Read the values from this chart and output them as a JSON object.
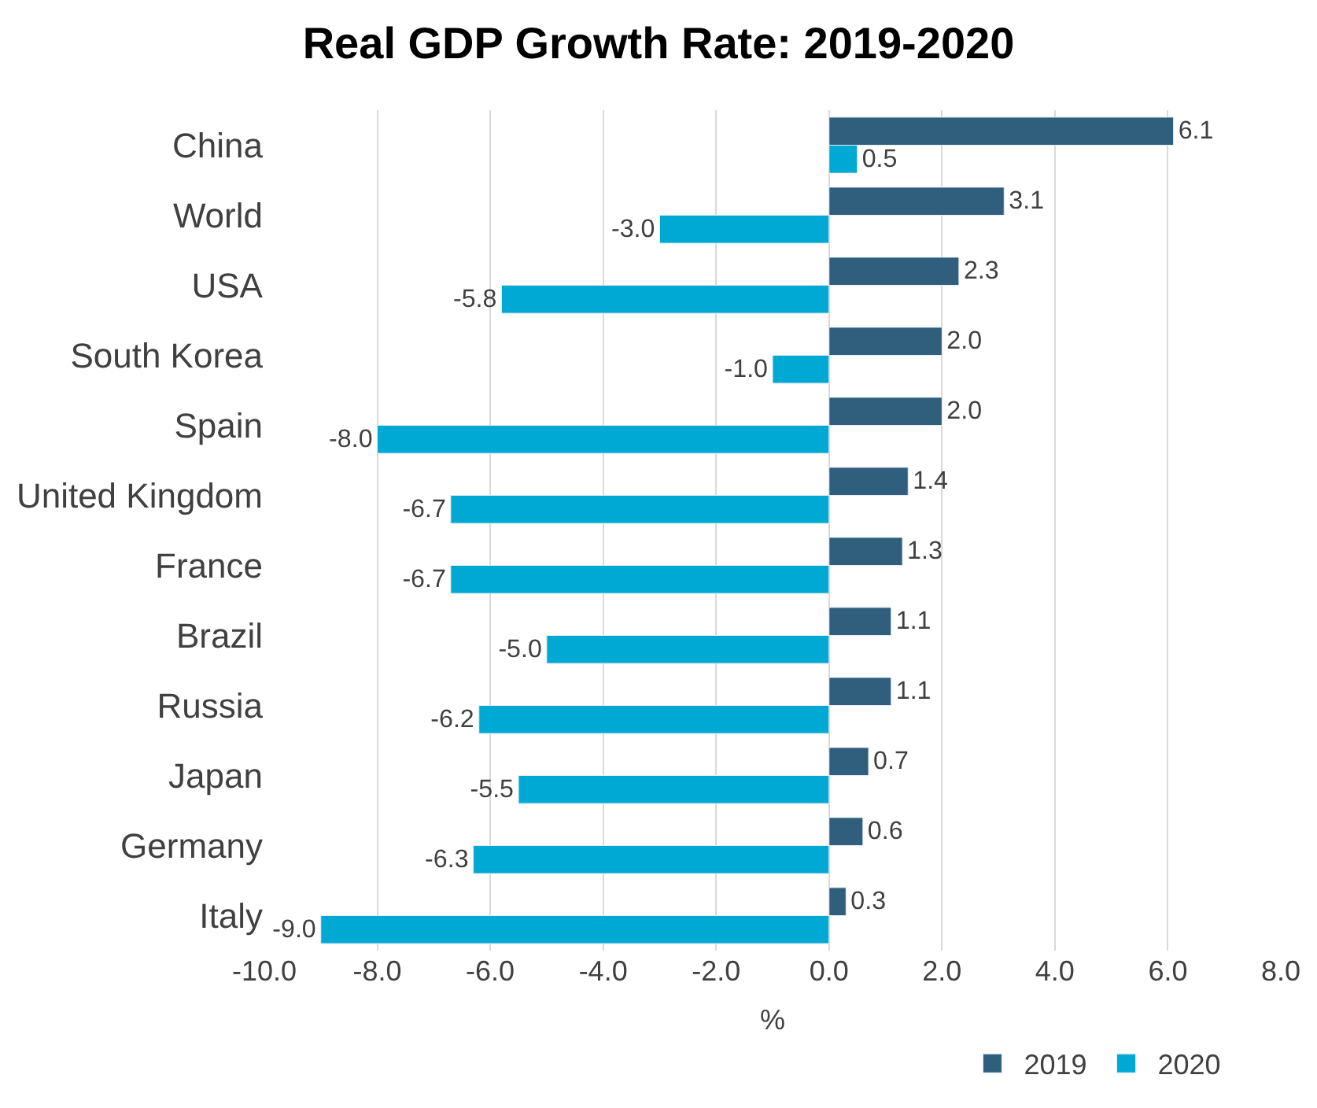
{
  "chart_data": {
    "type": "bar",
    "orientation": "horizontal",
    "title": "Real GDP Growth Rate: 2019-2020",
    "xlabel": "%",
    "categories": [
      "China",
      "World",
      "USA",
      "South Korea",
      "Spain",
      "United Kingdom",
      "France",
      "Brazil",
      "Russia",
      "Japan",
      "Germany",
      "Italy"
    ],
    "series": [
      {
        "name": "2019",
        "color": "#2f5f7c",
        "values": [
          6.1,
          3.1,
          2.3,
          2.0,
          2.0,
          1.4,
          1.3,
          1.1,
          1.1,
          0.7,
          0.6,
          0.3
        ],
        "value_labels": [
          "6.1",
          "3.1",
          "2.3",
          "2.0",
          "2.0",
          "1.4",
          "1.3",
          "1.1",
          "1.1",
          "0.7",
          "0.6",
          "0.3"
        ]
      },
      {
        "name": "2020",
        "color": "#00a9d3",
        "values": [
          0.5,
          -3.0,
          -5.8,
          -1.0,
          -8.0,
          -6.7,
          -6.7,
          -5.0,
          -6.2,
          -5.5,
          -6.3,
          -9.0
        ],
        "value_labels": [
          "0.5",
          "-3.0",
          "-5.8",
          "-1.0",
          "-8.0",
          "-6.7",
          "-6.7",
          "-5.0",
          "-6.2",
          "-5.5",
          "-6.3",
          "-9.0"
        ]
      }
    ],
    "xlim": [
      -10,
      8
    ],
    "xticks": [
      {
        "value": -10,
        "label": "-10.0"
      },
      {
        "value": -8,
        "label": "-8.0"
      },
      {
        "value": -6,
        "label": "-6.0"
      },
      {
        "value": -4,
        "label": "-4.0"
      },
      {
        "value": -2,
        "label": "-2.0"
      },
      {
        "value": 0,
        "label": "0.0"
      },
      {
        "value": 2,
        "label": "2.0"
      },
      {
        "value": 4,
        "label": "4.0"
      },
      {
        "value": 6,
        "label": "6.0"
      },
      {
        "value": 8,
        "label": "8.0"
      }
    ],
    "grid": "x",
    "legend": "bottom"
  }
}
